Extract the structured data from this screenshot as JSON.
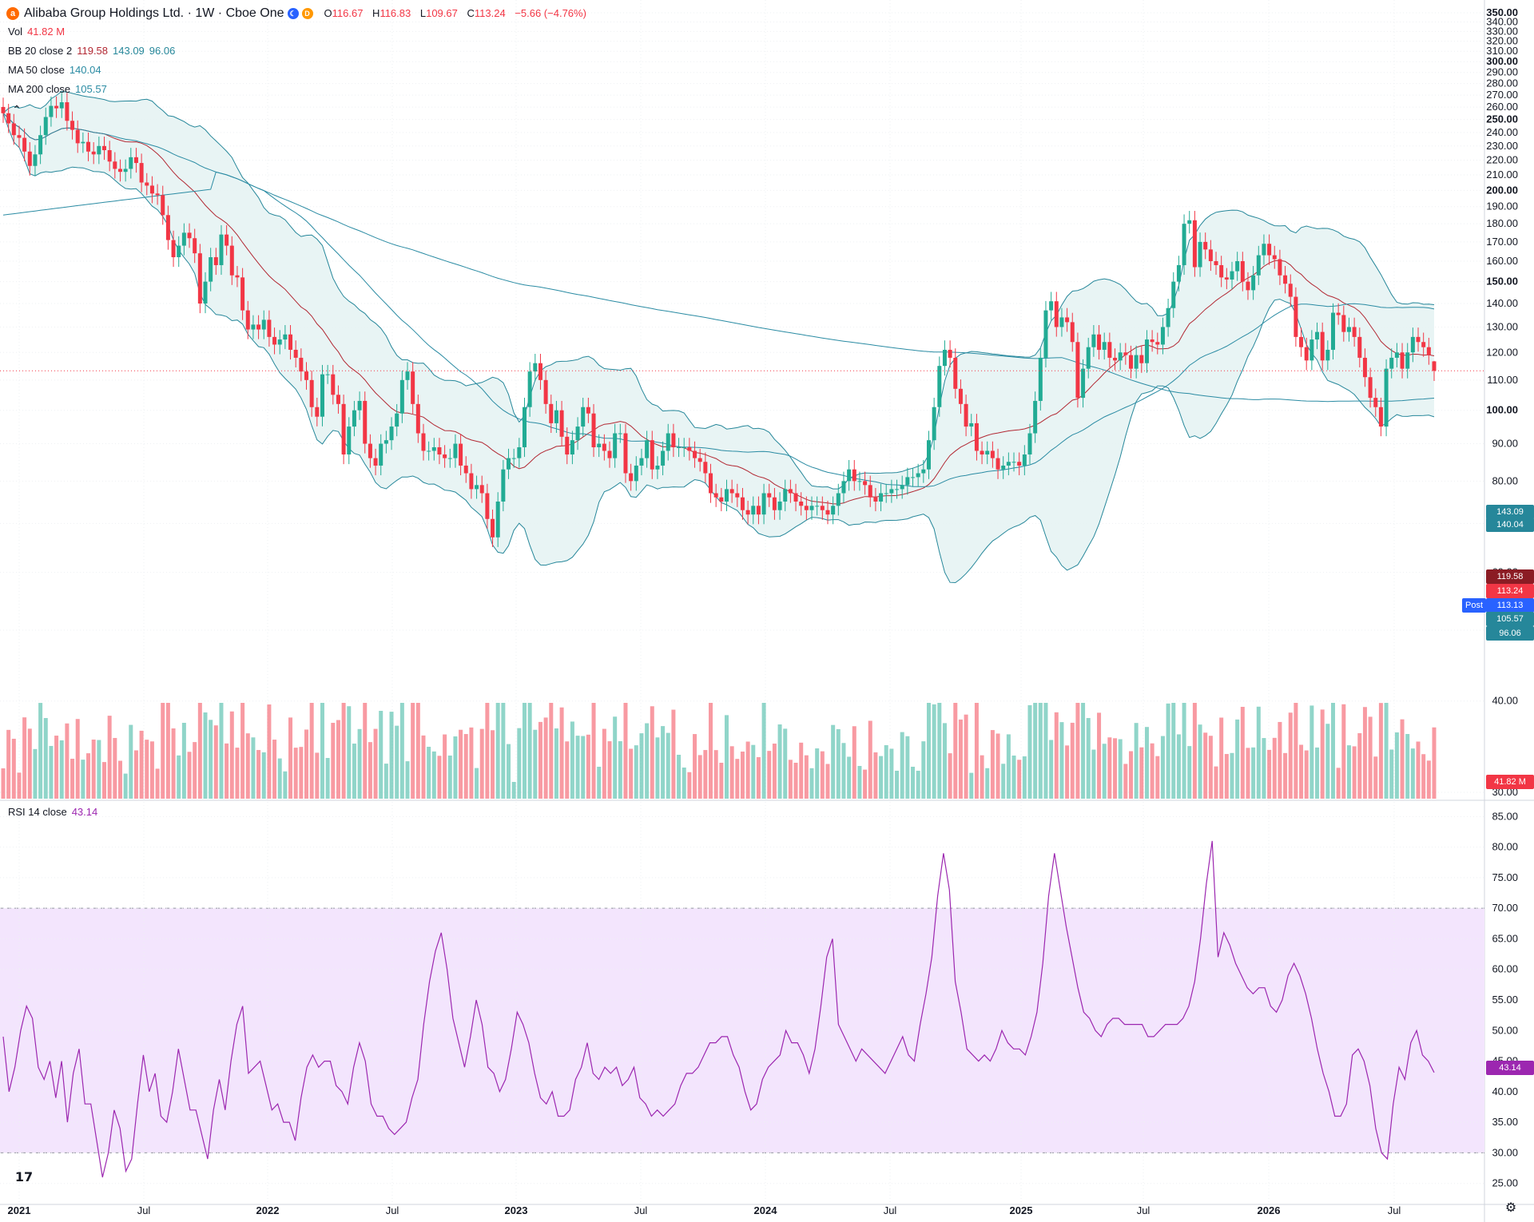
{
  "header": {
    "symbol_icon": "alibaba-logo-icon",
    "title": "Alibaba Group Holdings Ltd. · 1W · Cboe One",
    "open_label": "O",
    "open_value": "116.67",
    "high_label": "H",
    "high_value": "116.83",
    "low_label": "L",
    "low_value": "109.67",
    "close_label": "C",
    "close_value": "113.24",
    "change": "−5.66 (−4.76%)"
  },
  "legends": {
    "vol_name": "Vol",
    "vol_value": "41.82 M",
    "bb_name": "BB 20 close 2",
    "bb_basis": "119.58",
    "bb_upper": "143.09",
    "bb_lower": "96.06",
    "ma50_name": "MA 50 close",
    "ma50_value": "140.04",
    "ma200_name": "MA 200 close",
    "ma200_value": "105.57",
    "rsi_name": "RSI 14 close",
    "rsi_value": "43.14"
  },
  "price_labels": {
    "bb_upper": "143.09",
    "ma50": "140.04",
    "bb_basis": "119.58",
    "last": "113.24",
    "post_tag": "Post",
    "post": "113.13",
    "ma200": "105.57",
    "bb_lower": "96.06",
    "vol": "41.82 M",
    "rsi": "43.14"
  },
  "colors": {
    "up": "#22ab94",
    "down": "#f23645",
    "bb_basis": "#b22833",
    "bb_band": "#26879a",
    "bb_fill": "#e6f3f3",
    "ma50": "#2a8ba3",
    "ma200": "#2a8ba3",
    "rsi": "#9c27b0",
    "rsi_band": "#f3e5fd",
    "post": "#2962ff",
    "ma200_label": "#26879a"
  },
  "chart_data": [
    {
      "type": "candlestick",
      "title": "Alibaba Group Holdings Ltd. · 1W · Cboe One",
      "y_axis_ticks": [
        "340.00",
        "330.00",
        "320.00",
        "310.00",
        "300.00",
        "290.00",
        "280.00",
        "270.00",
        "260.00",
        "250.00",
        "240.00",
        "230.00",
        "220.00",
        "210.00",
        "200.00",
        "190.00",
        "180.00",
        "170.00",
        "160.00",
        "150.00",
        "140.00",
        "130.00",
        "120.00",
        "110.00",
        "100.00",
        "90.00",
        "80.00",
        "70.00",
        "60.00",
        "50.00",
        "40.00",
        "30.00"
      ],
      "y_axis_top_label": "350.00",
      "y_scale": "log",
      "ylim": [
        30,
        350
      ],
      "x_axis_labels": [
        "2021",
        "Jul",
        "2022",
        "Jul",
        "2023",
        "Jul",
        "2024",
        "Jul",
        "2025",
        "Jul",
        "2026",
        "Jul"
      ],
      "grid": true,
      "closes": [
        255,
        247,
        238,
        236,
        226,
        216,
        224,
        238,
        252,
        261,
        259,
        264,
        249,
        242,
        232,
        233,
        226,
        224,
        230,
        227,
        219,
        214,
        212,
        214,
        222,
        218,
        205,
        203,
        198,
        197,
        185,
        171,
        162,
        168,
        175,
        172,
        164,
        140,
        150,
        162,
        158,
        174,
        168,
        153,
        152,
        137,
        129,
        131,
        129,
        133,
        126,
        123,
        125,
        127,
        121,
        118,
        113,
        110,
        101,
        98,
        112,
        112,
        105,
        102,
        87,
        95,
        100,
        103,
        90,
        86,
        84,
        90,
        91,
        95,
        99,
        110,
        113,
        102,
        93,
        88,
        88,
        89,
        87,
        86,
        86,
        90,
        84,
        82,
        78,
        79,
        77,
        71,
        67,
        75,
        83,
        86,
        86,
        89,
        101,
        113,
        116,
        110,
        102,
        96,
        100,
        92,
        87,
        91,
        95,
        101,
        99,
        89,
        90,
        88,
        86,
        93,
        93,
        82,
        80,
        84,
        86,
        91,
        83,
        84,
        88,
        93,
        89,
        89,
        89,
        88,
        86,
        85,
        82,
        77,
        76,
        75,
        78,
        77,
        76,
        73,
        72,
        74,
        72,
        77,
        76,
        73,
        75,
        78,
        77,
        75,
        74,
        73,
        74,
        74,
        73,
        72,
        74,
        77,
        80,
        83,
        80,
        80,
        79,
        76,
        75,
        77,
        77,
        78,
        78,
        79,
        81,
        81,
        82,
        83,
        91,
        101,
        115,
        121,
        118,
        107,
        102,
        95,
        96,
        88,
        87,
        88,
        86,
        83,
        84,
        85,
        85,
        84,
        87,
        93,
        103,
        118,
        137,
        141,
        130,
        134,
        132,
        124,
        104,
        114,
        122,
        127,
        121,
        124,
        118,
        117,
        120,
        119,
        114,
        119,
        116,
        125,
        124,
        123,
        130,
        138,
        150,
        158,
        180,
        182,
        157,
        170,
        166,
        160,
        158,
        152,
        151,
        155,
        160,
        150,
        146,
        153,
        163,
        169,
        163,
        161,
        153,
        149,
        143,
        126,
        122,
        117,
        125,
        128,
        117,
        121,
        136,
        135,
        128,
        130,
        126,
        118,
        111,
        104,
        101,
        95,
        114,
        118,
        120,
        114,
        120,
        126,
        124,
        122,
        119,
        113.24
      ],
      "last": {
        "open": 116.67,
        "high": 116.83,
        "low": 109.67,
        "close": 113.24,
        "change": -5.66,
        "change_pct": -4.76
      }
    },
    {
      "type": "bar",
      "title": "Vol",
      "last_value": "41.82 M"
    },
    {
      "type": "line",
      "title": "RSI 14 close",
      "y_axis_ticks": [
        "85.00",
        "80.00",
        "75.00",
        "70.00",
        "65.00",
        "60.00",
        "55.00",
        "50.00",
        "45.00",
        "40.00",
        "35.00",
        "30.00",
        "25.00"
      ],
      "ylim": [
        23,
        87
      ],
      "band": [
        30,
        70
      ],
      "values": [
        49,
        40,
        44,
        50,
        54,
        52,
        44,
        42,
        45,
        39,
        45,
        35,
        43,
        47,
        38,
        38,
        32,
        26,
        30,
        37,
        34,
        27,
        29,
        38,
        46,
        40,
        43,
        36,
        35,
        40,
        47,
        42,
        37,
        37,
        33,
        29,
        37,
        42,
        37,
        45,
        51,
        54,
        43,
        44,
        45,
        41,
        37,
        38,
        35,
        35,
        32,
        39,
        44,
        46,
        44,
        45,
        45,
        41,
        40,
        38,
        44,
        48,
        45,
        38,
        36,
        36,
        34,
        33,
        34,
        35,
        39,
        42,
        51,
        58,
        63,
        66,
        60,
        52,
        48,
        44,
        49,
        55,
        51,
        44,
        43,
        40,
        42,
        47,
        53,
        51,
        48,
        43,
        39,
        38,
        40,
        36,
        36,
        37,
        42,
        44,
        48,
        43,
        42,
        44,
        43,
        44,
        41,
        42,
        44,
        39,
        38,
        36,
        37,
        36,
        37,
        38,
        41,
        43,
        43,
        44,
        46,
        48,
        48,
        49,
        49,
        46,
        44,
        40,
        37,
        38,
        42,
        44,
        45,
        46,
        50,
        48,
        48,
        46,
        43,
        47,
        54,
        62,
        65,
        51,
        49,
        47,
        45,
        47,
        46,
        45,
        44,
        43,
        45,
        47,
        49,
        46,
        45,
        51,
        56,
        62,
        72,
        79,
        73,
        58,
        53,
        47,
        46,
        45,
        46,
        45,
        47,
        50,
        48,
        47,
        47,
        46,
        49,
        53,
        61,
        72,
        79,
        73,
        67,
        62,
        57,
        53,
        52,
        50,
        49,
        51,
        52,
        52,
        51,
        51,
        51,
        51,
        49,
        49,
        50,
        51,
        51,
        51,
        52,
        54,
        58,
        65,
        74,
        81,
        62,
        66,
        64,
        61,
        59,
        57,
        56,
        57,
        57,
        54,
        53,
        55,
        59,
        61,
        59,
        56,
        52,
        47,
        43,
        40,
        36,
        36,
        38,
        46,
        47,
        45,
        41,
        34,
        30,
        29,
        38,
        44,
        42,
        48,
        50,
        46,
        45,
        43.14
      ]
    }
  ]
}
